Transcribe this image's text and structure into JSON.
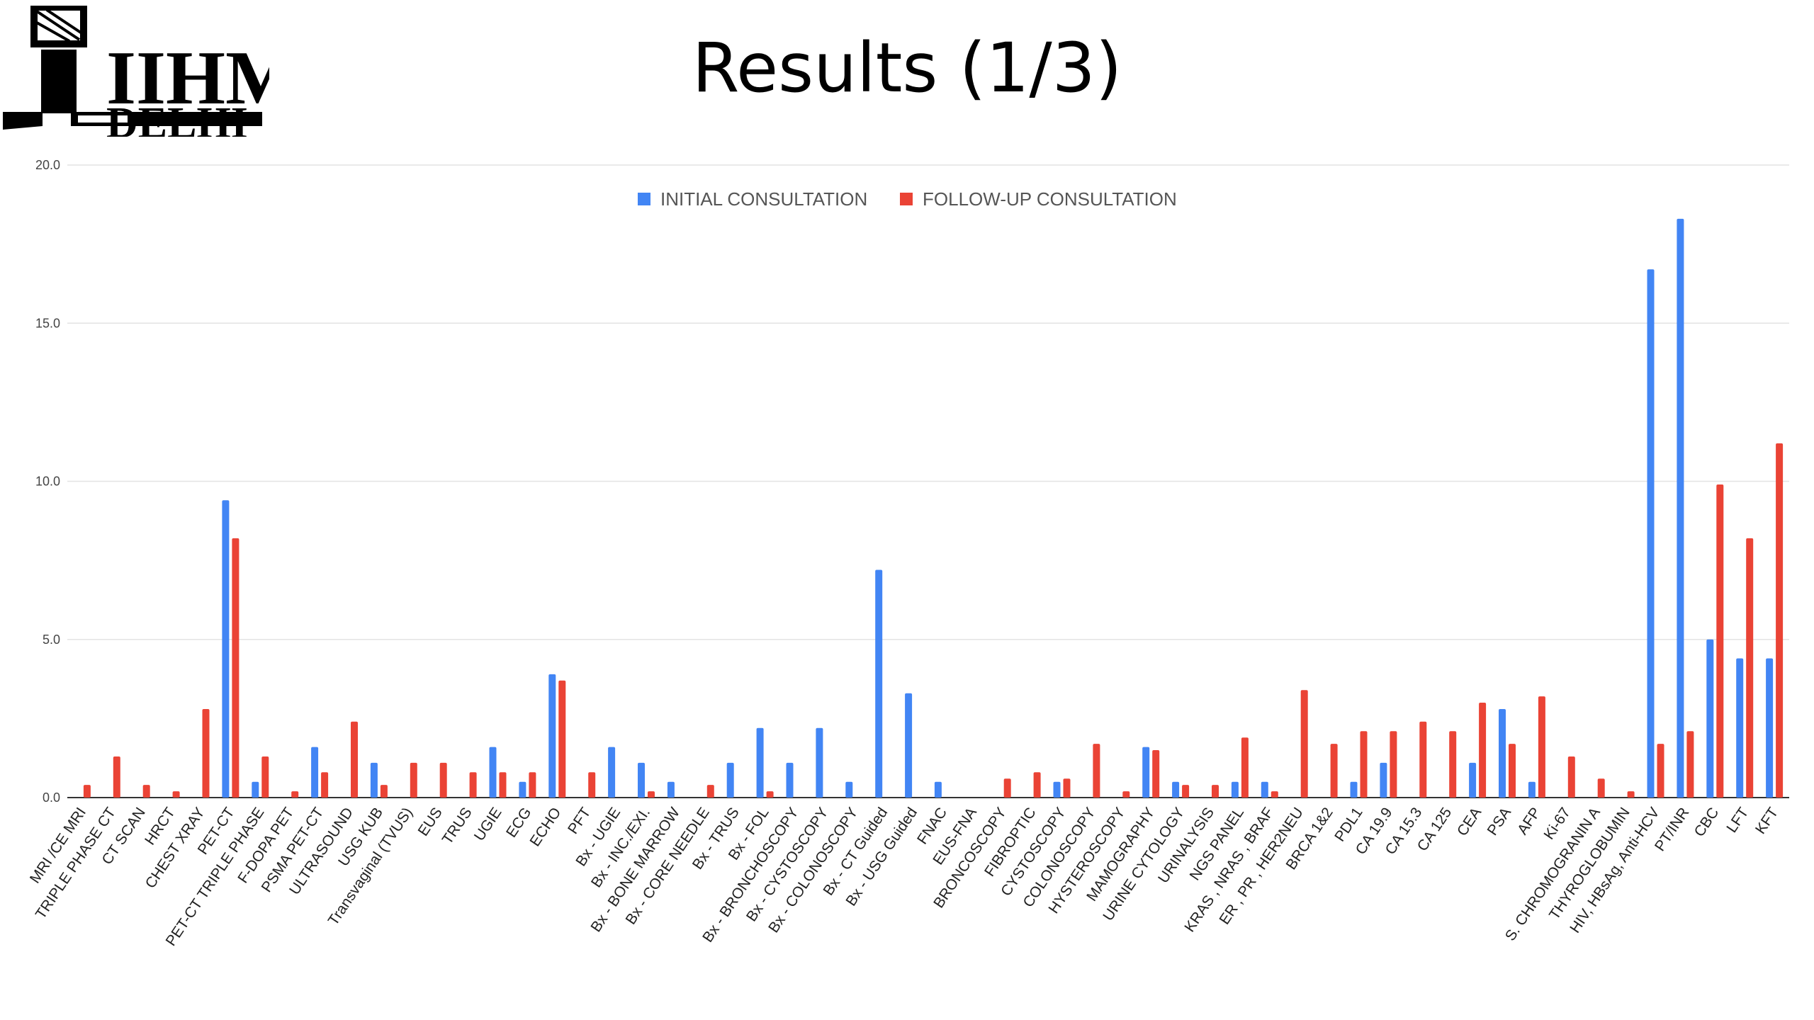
{
  "logo": {
    "line1": "IIHMR",
    "line2": "DELHI"
  },
  "slide": {
    "title": "Results (1/3)"
  },
  "colors": {
    "initial": "#4285f4",
    "followup": "#ea4335",
    "grid": "#e3e3e3",
    "axis": "#333333"
  },
  "chart_data": {
    "type": "bar",
    "ylim": [
      0,
      20
    ],
    "yticks": [
      "0.0",
      "5.0",
      "10.0",
      "15.0",
      "20.0"
    ],
    "legend_position": "top",
    "grid": true,
    "categories": [
      "MRI /CE MRI",
      "TRIPLE PHASE CT",
      "CT SCAN",
      "HRCT",
      "CHEST XRAY",
      "PET-CT",
      "PET-CT TRIPLE PHASE",
      "F-DOPA PET",
      "PSMA PET-CT",
      "ULTRASOUND",
      "USG KUB",
      "Transvaginal (TVUS)",
      "EUS",
      "TRUS",
      "UGIE",
      "ECG",
      "ECHO",
      "PFT",
      "Bx - UGIE",
      "Bx - INC./EXI.",
      "Bx - BONE MARROW",
      "Bx - CORE NEEDLE",
      "Bx - TRUS",
      "Bx - FOL",
      "Bx - BRONCHOSCOPY",
      "Bx - CYSTOSCOPY",
      "Bx - COLONOSCOPY",
      "Bx - CT Guided",
      "Bx - USG Guided",
      "FNAC",
      "EUS-FNA",
      "BRONCOSCOPY",
      "FIBROPTIC",
      "CYSTOSCOPY",
      "COLONOSCOPY",
      "HYSTEROSCOPY",
      "MAMOGRAPHY",
      "URINE CYTOLOGY",
      "URINALYSIS",
      "NGS PANEL",
      "KRAS , NRAS , BRAF",
      "ER , PR , HER2NEU",
      "BRCA 1&2",
      "PDL1",
      "CA 19.9",
      "CA 15.3",
      "CA 125",
      "CEA",
      "PSA",
      "AFP",
      "Ki-67",
      "S. CHROMOGRANIN A",
      "THYROGLOBUMIN",
      "HIV, HBsAg, Anti-HCV",
      "PT/INR",
      "CBC",
      "LFT",
      "KFT"
    ],
    "series": [
      {
        "name": "INITIAL CONSULTATION",
        "values": [
          0,
          0,
          0,
          0,
          0,
          9.4,
          0.5,
          0,
          1.6,
          0,
          1.1,
          0,
          0,
          0,
          1.6,
          0.5,
          3.9,
          0,
          1.6,
          1.1,
          0.5,
          0,
          1.1,
          2.2,
          1.1,
          2.2,
          0.5,
          7.2,
          3.3,
          0.5,
          0,
          0,
          0,
          0.5,
          0,
          0,
          1.6,
          0.5,
          0,
          0.5,
          0.5,
          0,
          0,
          0.5,
          1.1,
          0,
          0,
          1.1,
          2.8,
          0.5,
          0,
          0,
          0,
          16.7,
          18.3,
          5.0,
          4.4,
          4.4
        ]
      },
      {
        "name": "FOLLOW-UP CONSULTATION",
        "values": [
          0.4,
          1.3,
          0.4,
          0.2,
          2.8,
          8.2,
          1.3,
          0.2,
          0.8,
          2.4,
          0.4,
          1.1,
          1.1,
          0.8,
          0.8,
          0.8,
          3.7,
          0.8,
          0,
          0.2,
          0,
          0.4,
          0,
          0.2,
          0,
          0,
          0,
          0,
          0,
          0,
          0,
          0.6,
          0.8,
          0.6,
          1.7,
          0.2,
          1.5,
          0.4,
          0.4,
          1.9,
          0.2,
          3.4,
          1.7,
          2.1,
          2.1,
          2.4,
          2.1,
          3.0,
          1.7,
          3.2,
          1.3,
          0.6,
          0.2,
          1.7,
          2.1,
          9.9,
          8.2,
          11.2
        ]
      }
    ]
  }
}
